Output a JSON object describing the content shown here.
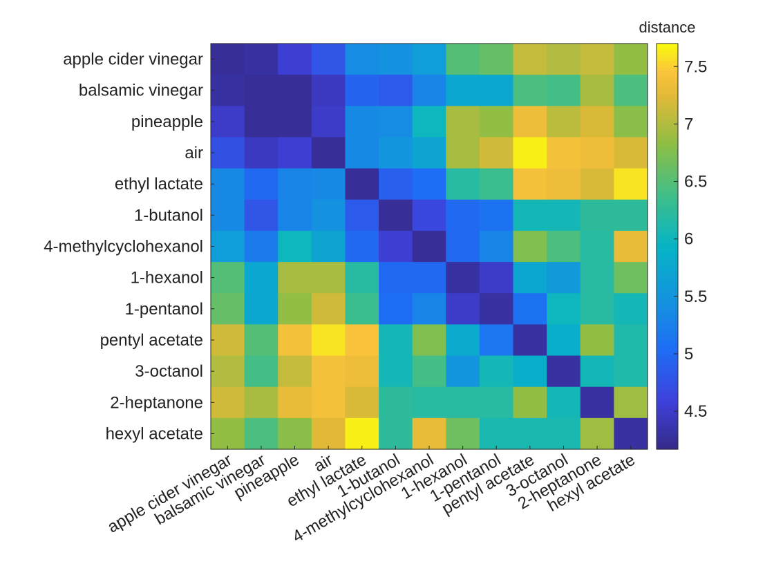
{
  "chart_data": {
    "type": "heatmap",
    "title": "",
    "xlabel": "",
    "ylabel": "",
    "colorbar_label": "distance",
    "colormap": "parula",
    "clim": [
      4.17,
      7.7
    ],
    "colorbar_ticks": [
      "4.5",
      "5",
      "5.5",
      "6",
      "6.5",
      "7",
      "7.5"
    ],
    "categories": [
      "apple cider vinegar",
      "balsamic vinegar",
      "pineapple",
      "air",
      "ethyl lactate",
      "1-butanol",
      "4-methylcyclohexanol",
      "1-hexanol",
      "1-pentanol",
      "pentyl acetate",
      "3-octanol",
      "2-heptanone",
      "hexyl acetate"
    ],
    "values": [
      [
        4.25,
        4.3,
        4.55,
        4.8,
        5.4,
        5.45,
        5.6,
        6.5,
        6.6,
        7.1,
        7.0,
        7.1,
        6.85
      ],
      [
        4.3,
        4.25,
        4.25,
        4.45,
        4.95,
        4.85,
        5.3,
        5.75,
        5.75,
        6.45,
        6.4,
        6.95,
        6.45
      ],
      [
        4.5,
        4.25,
        4.25,
        4.5,
        5.35,
        5.4,
        6.0,
        6.95,
        6.85,
        7.35,
        7.05,
        7.2,
        6.8
      ],
      [
        4.75,
        4.45,
        4.55,
        4.25,
        5.35,
        5.5,
        5.7,
        6.95,
        7.15,
        7.65,
        7.4,
        7.35,
        7.2
      ],
      [
        5.35,
        5.0,
        5.3,
        5.35,
        4.25,
        4.9,
        5.05,
        6.2,
        6.35,
        7.4,
        7.35,
        7.2,
        7.6
      ],
      [
        5.35,
        4.8,
        5.3,
        5.45,
        4.85,
        4.25,
        4.65,
        5.0,
        5.1,
        6.05,
        6.05,
        6.25,
        6.25
      ],
      [
        5.6,
        5.2,
        6.0,
        5.7,
        5.0,
        4.55,
        4.25,
        5.0,
        5.3,
        6.75,
        6.45,
        6.2,
        7.3
      ],
      [
        6.5,
        5.75,
        6.95,
        6.95,
        6.2,
        5.0,
        5.0,
        4.3,
        4.5,
        5.75,
        5.55,
        6.2,
        6.65
      ],
      [
        6.6,
        5.75,
        6.85,
        7.15,
        6.35,
        5.05,
        5.3,
        4.5,
        4.3,
        5.1,
        6.0,
        6.2,
        6.05
      ],
      [
        7.15,
        6.5,
        7.4,
        7.6,
        7.45,
        6.05,
        6.75,
        5.8,
        5.15,
        4.3,
        5.85,
        6.85,
        6.15
      ],
      [
        7.0,
        6.4,
        7.1,
        7.4,
        7.35,
        6.05,
        6.4,
        5.5,
        6.05,
        5.85,
        4.3,
        6.05,
        6.15
      ],
      [
        7.15,
        6.95,
        7.3,
        7.4,
        7.2,
        6.25,
        6.2,
        6.2,
        6.2,
        6.85,
        6.05,
        4.3,
        6.9
      ],
      [
        6.85,
        6.45,
        6.8,
        7.25,
        7.65,
        6.25,
        7.3,
        6.65,
        6.1,
        6.1,
        6.1,
        6.9,
        4.3
      ]
    ]
  }
}
